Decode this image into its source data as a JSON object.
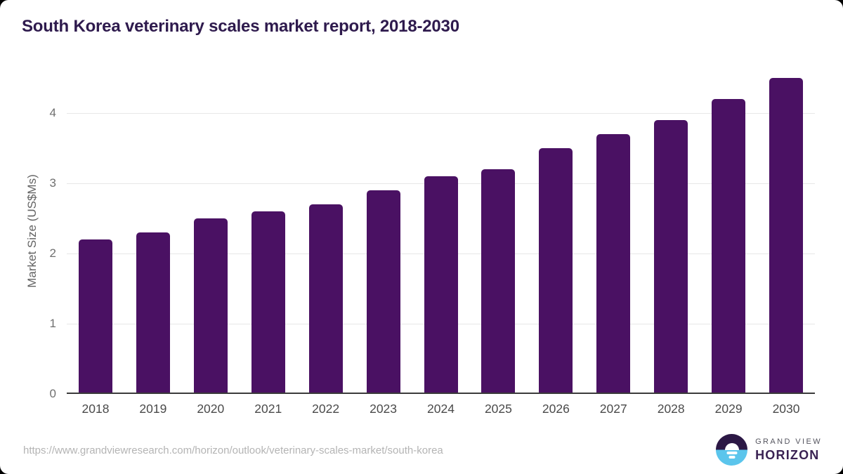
{
  "page": {
    "title": "South Korea veterinary scales market report, 2018-2030"
  },
  "chart_data": {
    "type": "bar",
    "title": "South Korea veterinary scales market report, 2018-2030",
    "categories": [
      "2018",
      "2019",
      "2020",
      "2021",
      "2022",
      "2023",
      "2024",
      "2025",
      "2026",
      "2027",
      "2028",
      "2029",
      "2030"
    ],
    "values": [
      2.2,
      2.3,
      2.5,
      2.6,
      2.7,
      2.9,
      3.1,
      3.2,
      3.5,
      3.7,
      3.9,
      4.2,
      4.5
    ],
    "xlabel": "",
    "ylabel": "Market Size (US$Ms)",
    "ylim": [
      0,
      4.65
    ],
    "yticks": [
      0,
      1,
      2,
      3,
      4
    ],
    "grid": "horizontal",
    "legend": "none",
    "bar_color": "#4a1163"
  },
  "footer": {
    "source_url": "https://www.grandviewresearch.com/horizon/outlook/veterinary-scales-market/south-korea",
    "logo": {
      "brand_top": "GRAND VIEW",
      "brand_bottom": "HORIZON"
    }
  },
  "colors": {
    "bar": "#4a1163",
    "title_text": "#2e1a4d",
    "axis_line": "#3b3b3b",
    "gridline": "#e7e7e7",
    "y_tick_text": "#6f6f6f",
    "x_tick_text": "#4a4a4a",
    "source_url_text": "#b4b4b4",
    "logo_purple": "#2c1845",
    "logo_blue": "#5bc5ec"
  }
}
